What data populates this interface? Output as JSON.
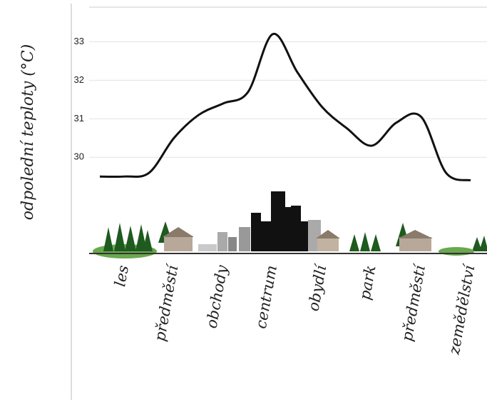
{
  "chart_data": {
    "type": "line",
    "y_label": "odpolední teploty (°C)",
    "categories": [
      null,
      "les",
      null,
      "předměstí",
      null,
      "obchody",
      null,
      "centrum",
      null,
      "obydlí",
      null,
      "park",
      null,
      "předměstí",
      null,
      "zemědělství"
    ],
    "series": [
      {
        "color": "#111111",
        "values": [
          29.5,
          29.5,
          29.6,
          30.5,
          31.1,
          31.4,
          31.7,
          33.2,
          32.2,
          31.3,
          30.75,
          30.3,
          30.9,
          31.05,
          29.6,
          29.4
        ]
      }
    ],
    "ylim": [
      27.5,
      33.9
    ],
    "yticks": [
      30,
      31,
      32,
      33
    ],
    "grid": true
  }
}
